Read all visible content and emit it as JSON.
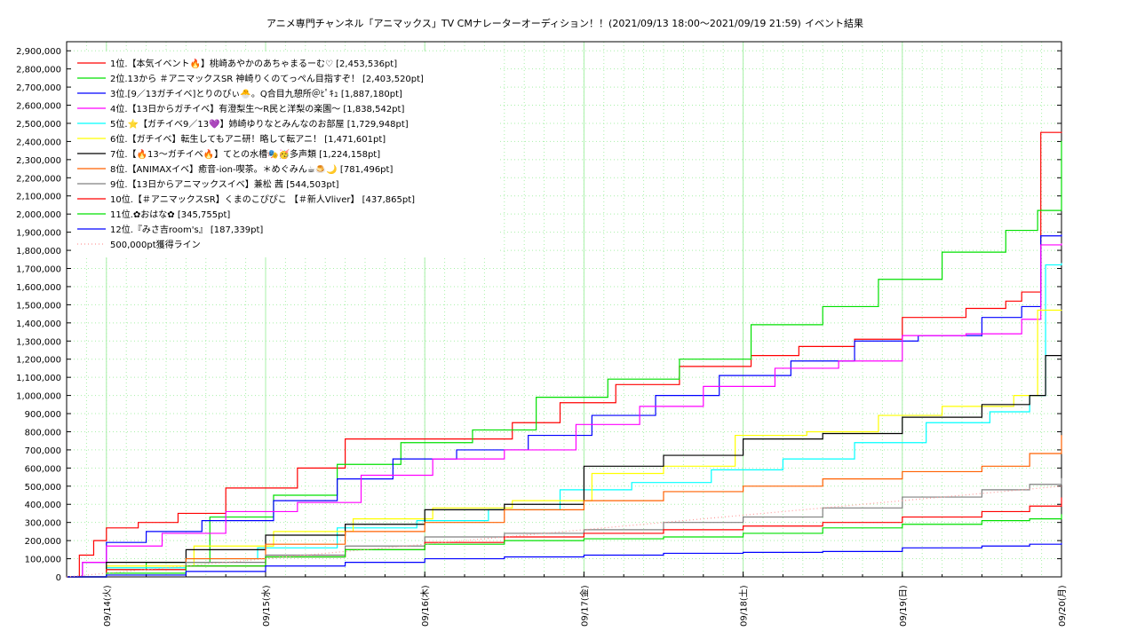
{
  "chart_data": {
    "type": "line",
    "title": "アニメ専門チャンネル「アニマックス」TV CMナレーターオーディション！！(2021/09/13 18:00〜2021/09/19 21:59)",
    "subtitle": "イベント結果",
    "x_unit": "day",
    "x_start": "2021-09-13 18:00",
    "x_end": "2021-09-20",
    "xlim": [
      0,
      6.25
    ],
    "x_ticks": [
      {
        "at": 0.25,
        "label": "09/14(火)"
      },
      {
        "at": 1.25,
        "label": "09/15(水)"
      },
      {
        "at": 2.25,
        "label": "09/16(木)"
      },
      {
        "at": 3.25,
        "label": "09/17(金)"
      },
      {
        "at": 4.25,
        "label": "09/18(土)"
      },
      {
        "at": 5.25,
        "label": "09/19(日)"
      },
      {
        "at": 6.25,
        "label": "09/20(月)"
      }
    ],
    "ylim": [
      0,
      2950000
    ],
    "y_ticks": [
      "0",
      "100,000",
      "200,000",
      "300,000",
      "400,000",
      "500,000",
      "600,000",
      "700,000",
      "800,000",
      "900,000",
      "1,000,000",
      "1,100,000",
      "1,200,000",
      "1,300,000",
      "1,400,000",
      "1,500,000",
      "1,600,000",
      "1,700,000",
      "1,800,000",
      "1,900,000",
      "2,000,000",
      "2,100,000",
      "2,200,000",
      "2,300,000",
      "2,400,000",
      "2,500,000",
      "2,600,000",
      "2,700,000",
      "2,800,000",
      "2,900,000"
    ],
    "grid": true,
    "legend_position": "top-left",
    "series": [
      {
        "name": "1位.【本気イベント🔥】桃崎あやかのあちゃまるーむ♡ [2,453,536pt]",
        "color": "#ff0000",
        "x": [
          0,
          0.08,
          0.17,
          0.25,
          0.45,
          0.7,
          1.0,
          1.45,
          1.75,
          2.25,
          2.8,
          3.1,
          3.45,
          3.85,
          4.3,
          4.6,
          4.95,
          5.25,
          5.65,
          5.9,
          6.0,
          6.12,
          6.25
        ],
        "y": [
          0,
          120000,
          200000,
          270000,
          300000,
          350000,
          490000,
          600000,
          760000,
          760000,
          850000,
          960000,
          1060000,
          1160000,
          1220000,
          1270000,
          1310000,
          1430000,
          1480000,
          1520000,
          1570000,
          2450000,
          2453536
        ]
      },
      {
        "name": "2位.13から ＃アニマックスSR 神崎りくのてっぺん目指すぞ！ [2,403,520pt]",
        "color": "#00e000",
        "x": [
          0,
          0.25,
          0.5,
          0.9,
          1.3,
          1.7,
          2.1,
          2.55,
          2.95,
          3.4,
          3.85,
          4.3,
          4.75,
          5.1,
          5.5,
          5.9,
          6.1,
          6.25
        ],
        "y": [
          0,
          40000,
          80000,
          330000,
          450000,
          620000,
          740000,
          810000,
          990000,
          1090000,
          1200000,
          1390000,
          1490000,
          1640000,
          1790000,
          1910000,
          2020000,
          2403520
        ]
      },
      {
        "name": "3位.[9／13ガチイベ]とりのぴぃ🐣。Q合目九憩所＠ﾋﾟｷｭ [1,887,180pt]",
        "color": "#0000ff",
        "x": [
          0,
          0.1,
          0.25,
          0.5,
          0.85,
          1.3,
          1.7,
          2.05,
          2.45,
          2.9,
          3.3,
          3.7,
          4.1,
          4.55,
          4.95,
          5.35,
          5.75,
          6.0,
          6.12,
          6.25
        ],
        "y": [
          0,
          80000,
          190000,
          250000,
          310000,
          420000,
          540000,
          650000,
          700000,
          780000,
          890000,
          1000000,
          1110000,
          1190000,
          1300000,
          1330000,
          1430000,
          1490000,
          1880000,
          1887180
        ]
      },
      {
        "name": "4位.【13日からガチイベ】有澄梨生〜R民と洋梨の楽園〜 [1,838,542pt]",
        "color": "#ff00ff",
        "x": [
          0,
          0.1,
          0.25,
          0.6,
          1.0,
          1.45,
          1.85,
          2.3,
          2.75,
          3.2,
          3.6,
          4.0,
          4.45,
          4.85,
          5.25,
          5.65,
          6.0,
          6.12,
          6.25
        ],
        "y": [
          0,
          80000,
          170000,
          240000,
          360000,
          410000,
          560000,
          650000,
          700000,
          840000,
          940000,
          1050000,
          1150000,
          1190000,
          1330000,
          1340000,
          1420000,
          1830000,
          1838542
        ]
      },
      {
        "name": "5位.⭐【ガチイベ9／13💜】姉崎ゆりなとみんなのお部屋 [1,729,948pt]",
        "color": "#00ffff",
        "x": [
          0,
          0.25,
          0.75,
          1.2,
          1.7,
          2.2,
          2.65,
          3.1,
          3.55,
          4.05,
          4.5,
          4.95,
          5.4,
          5.8,
          6.05,
          6.15,
          6.25
        ],
        "y": [
          0,
          50000,
          100000,
          160000,
          270000,
          310000,
          370000,
          480000,
          520000,
          590000,
          650000,
          740000,
          850000,
          910000,
          1000000,
          1720000,
          1729948
        ]
      },
      {
        "name": "6位.【ガチイベ】転生してもアニ研！略して転アニ！ [1,471,601pt]",
        "color": "#ffff00",
        "x": [
          0,
          0.25,
          0.8,
          1.3,
          1.8,
          2.3,
          2.8,
          3.3,
          3.75,
          4.2,
          4.65,
          5.1,
          5.5,
          5.95,
          6.1,
          6.25
        ],
        "y": [
          0,
          60000,
          170000,
          250000,
          320000,
          380000,
          420000,
          570000,
          610000,
          780000,
          800000,
          890000,
          940000,
          1000000,
          1470000,
          1471601
        ]
      },
      {
        "name": "7位.【🔥13〜ガチイベ🔥】てとの水槽🎭🥳多声類 [1,224,158pt]",
        "color": "#000000",
        "x": [
          0,
          0.25,
          0.75,
          1.25,
          1.75,
          2.25,
          2.75,
          3.25,
          3.75,
          4.25,
          4.75,
          5.25,
          5.75,
          6.05,
          6.15,
          6.25
        ],
        "y": [
          0,
          80000,
          150000,
          230000,
          290000,
          370000,
          400000,
          610000,
          670000,
          760000,
          790000,
          880000,
          950000,
          1000000,
          1220000,
          1224158
        ]
      },
      {
        "name": "8位.【ANIMAXイベ】癒音-ion-喫茶。＊めぐみん☕🍮🌙 [781,496pt]",
        "color": "#ff6000",
        "x": [
          0,
          0.25,
          0.75,
          1.25,
          1.75,
          2.25,
          2.75,
          3.25,
          3.75,
          4.25,
          4.75,
          5.25,
          5.75,
          6.05,
          6.25
        ],
        "y": [
          0,
          40000,
          100000,
          180000,
          250000,
          300000,
          370000,
          420000,
          470000,
          500000,
          540000,
          580000,
          610000,
          680000,
          781496
        ]
      },
      {
        "name": "9位.【13日からアニマックスイベ】兼松 茜 [544,503pt]",
        "color": "#808080",
        "x": [
          0,
          0.25,
          0.75,
          1.25,
          1.75,
          2.25,
          2.75,
          3.25,
          3.75,
          4.25,
          4.75,
          5.25,
          5.75,
          6.05,
          6.25
        ],
        "y": [
          0,
          40000,
          80000,
          120000,
          170000,
          220000,
          240000,
          260000,
          300000,
          330000,
          380000,
          440000,
          480000,
          510000,
          544503
        ]
      },
      {
        "name": "10位.【＃アニマックスSR】くまのこぴぴこ 【＃新人Vliver】 [437,865pt]",
        "color": "#ff0000",
        "x": [
          0,
          0.25,
          0.75,
          1.25,
          1.75,
          2.25,
          2.75,
          3.25,
          3.75,
          4.25,
          4.75,
          5.25,
          5.75,
          6.05,
          6.25
        ],
        "y": [
          0,
          40000,
          60000,
          110000,
          150000,
          190000,
          220000,
          240000,
          260000,
          280000,
          300000,
          330000,
          360000,
          390000,
          437865
        ]
      },
      {
        "name": "11位.✿おはな✿ [345,755pt]",
        "color": "#00e000",
        "x": [
          0,
          0.25,
          0.75,
          1.25,
          1.75,
          2.25,
          2.75,
          3.25,
          3.75,
          4.25,
          4.75,
          5.25,
          5.75,
          6.05,
          6.25
        ],
        "y": [
          0,
          20000,
          60000,
          110000,
          150000,
          180000,
          200000,
          210000,
          220000,
          240000,
          270000,
          290000,
          310000,
          320000,
          345755
        ]
      },
      {
        "name": "12位.『みさ吉room's』 [187,339pt]",
        "color": "#0000ff",
        "x": [
          0,
          0.25,
          0.75,
          1.25,
          1.75,
          2.25,
          2.75,
          3.25,
          3.75,
          4.25,
          4.75,
          5.25,
          5.75,
          6.05,
          6.25
        ],
        "y": [
          0,
          10000,
          30000,
          60000,
          80000,
          100000,
          110000,
          120000,
          130000,
          135000,
          140000,
          160000,
          170000,
          180000,
          187339
        ]
      },
      {
        "name": "500,000pt獲得ライン",
        "color": "#ff9999",
        "dotted": true,
        "x": [
          0,
          6.25
        ],
        "y": [
          0,
          500000
        ]
      }
    ]
  }
}
